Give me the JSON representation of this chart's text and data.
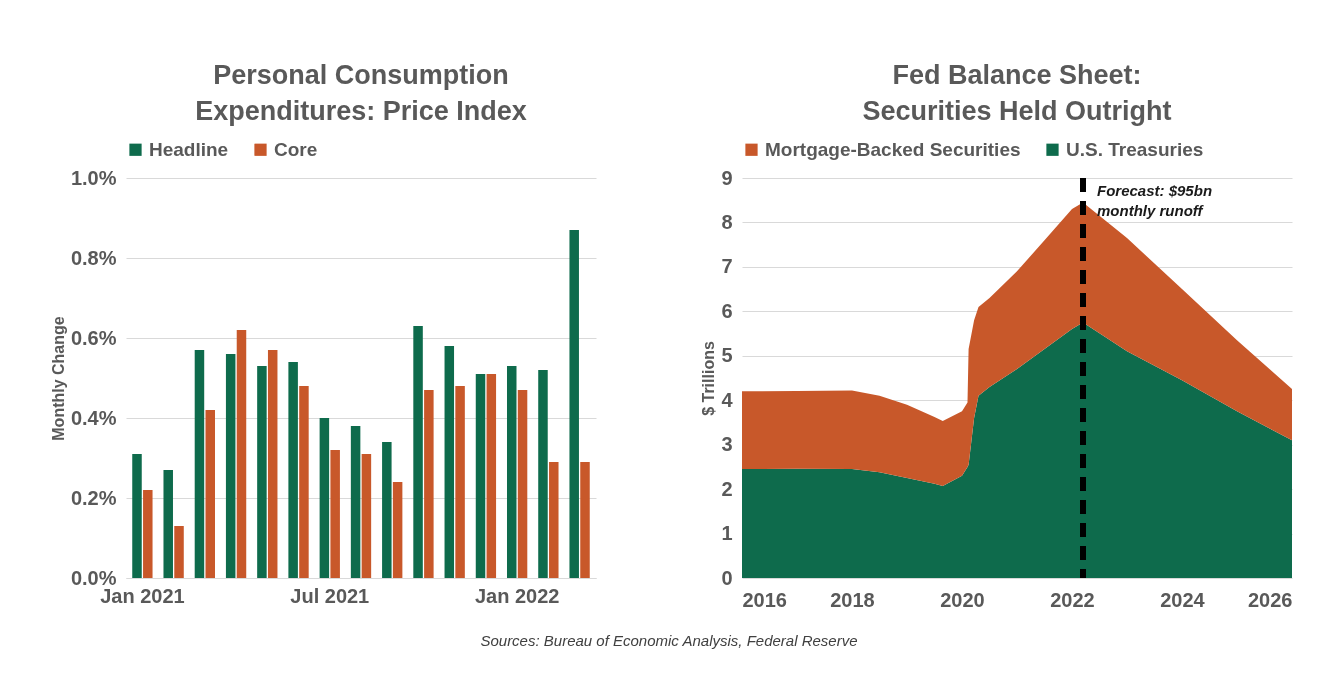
{
  "chart_data": [
    {
      "type": "bar",
      "title": "Personal Consumption Expenditures: Price Index",
      "ylabel": "Monthly Change",
      "categories": [
        "Jan 2021",
        null,
        null,
        null,
        null,
        null,
        "Jul 2021",
        null,
        null,
        null,
        null,
        null,
        "Jan 2022",
        null,
        null
      ],
      "series": [
        {
          "name": "Headline",
          "color": "#0e6b4c",
          "values": [
            0.31,
            0.27,
            0.57,
            0.56,
            0.53,
            0.54,
            0.4,
            0.38,
            0.34,
            0.63,
            0.58,
            0.51,
            0.53,
            0.52,
            0.87
          ]
        },
        {
          "name": "Core",
          "color": "#c8582a",
          "values": [
            0.22,
            0.13,
            0.42,
            0.62,
            0.57,
            0.48,
            0.32,
            0.31,
            0.24,
            0.47,
            0.48,
            0.51,
            0.47,
            0.29,
            0.29
          ]
        }
      ],
      "ylim": [
        0,
        1
      ],
      "yticks": [
        {
          "value": 0,
          "label": "0.0%"
        },
        {
          "value": 0.2,
          "label": "0.2%"
        },
        {
          "value": 0.4,
          "label": "0.4%"
        },
        {
          "value": 0.6,
          "label": "0.6%"
        },
        {
          "value": 0.8,
          "label": "0.8%"
        },
        {
          "value": 1,
          "label": "1.0%"
        }
      ],
      "grid": "y",
      "legend": "top"
    },
    {
      "type": "area",
      "stacked": true,
      "title": "Fed Balance Sheet: Securities Held Outright",
      "ylabel": "$ Trillions",
      "x": [
        2016,
        2017,
        2018,
        2018.5,
        2019,
        2019.5,
        2019.65,
        2020,
        2020.1,
        2020.12,
        2020.22,
        2020.3,
        2020.5,
        2021,
        2021.5,
        2022,
        2022.2,
        2023,
        2024,
        2025,
        2026
      ],
      "series": [
        {
          "name": "U.S. Treasuries",
          "color": "#0e6b4c",
          "values": [
            2.45,
            2.46,
            2.45,
            2.38,
            2.25,
            2.12,
            2.07,
            2.3,
            2.5,
            2.55,
            3.6,
            4.1,
            4.3,
            4.7,
            5.15,
            5.6,
            5.75,
            5.1,
            4.45,
            3.75,
            3.1
          ]
        },
        {
          "name": "Mortgage-Backed Securities",
          "color": "#c8582a",
          "values": [
            1.75,
            1.75,
            1.77,
            1.72,
            1.65,
            1.5,
            1.46,
            1.45,
            1.45,
            2.6,
            2.2,
            2.0,
            2.0,
            2.2,
            2.45,
            2.7,
            2.7,
            2.55,
            2.05,
            1.6,
            1.15
          ]
        }
      ],
      "xlim": [
        2016,
        2026
      ],
      "xticks": [
        2016,
        2018,
        2020,
        2022,
        2024,
        2026
      ],
      "ylim": [
        0,
        9
      ],
      "yticks": [
        0,
        1,
        2,
        3,
        4,
        5,
        6,
        7,
        8,
        9
      ],
      "ref_lines": [
        {
          "axis": "x",
          "value": 2022.2,
          "color": "#000000",
          "line_style": "dashed"
        }
      ],
      "annotations": [
        {
          "text": "Forecast: $95bn monthly runoff",
          "x": 2022.2,
          "y": 9
        },
        "Sources: Bureau of Economic Analysis, Federal Reserve"
      ],
      "grid": "y",
      "legend": "top"
    }
  ]
}
